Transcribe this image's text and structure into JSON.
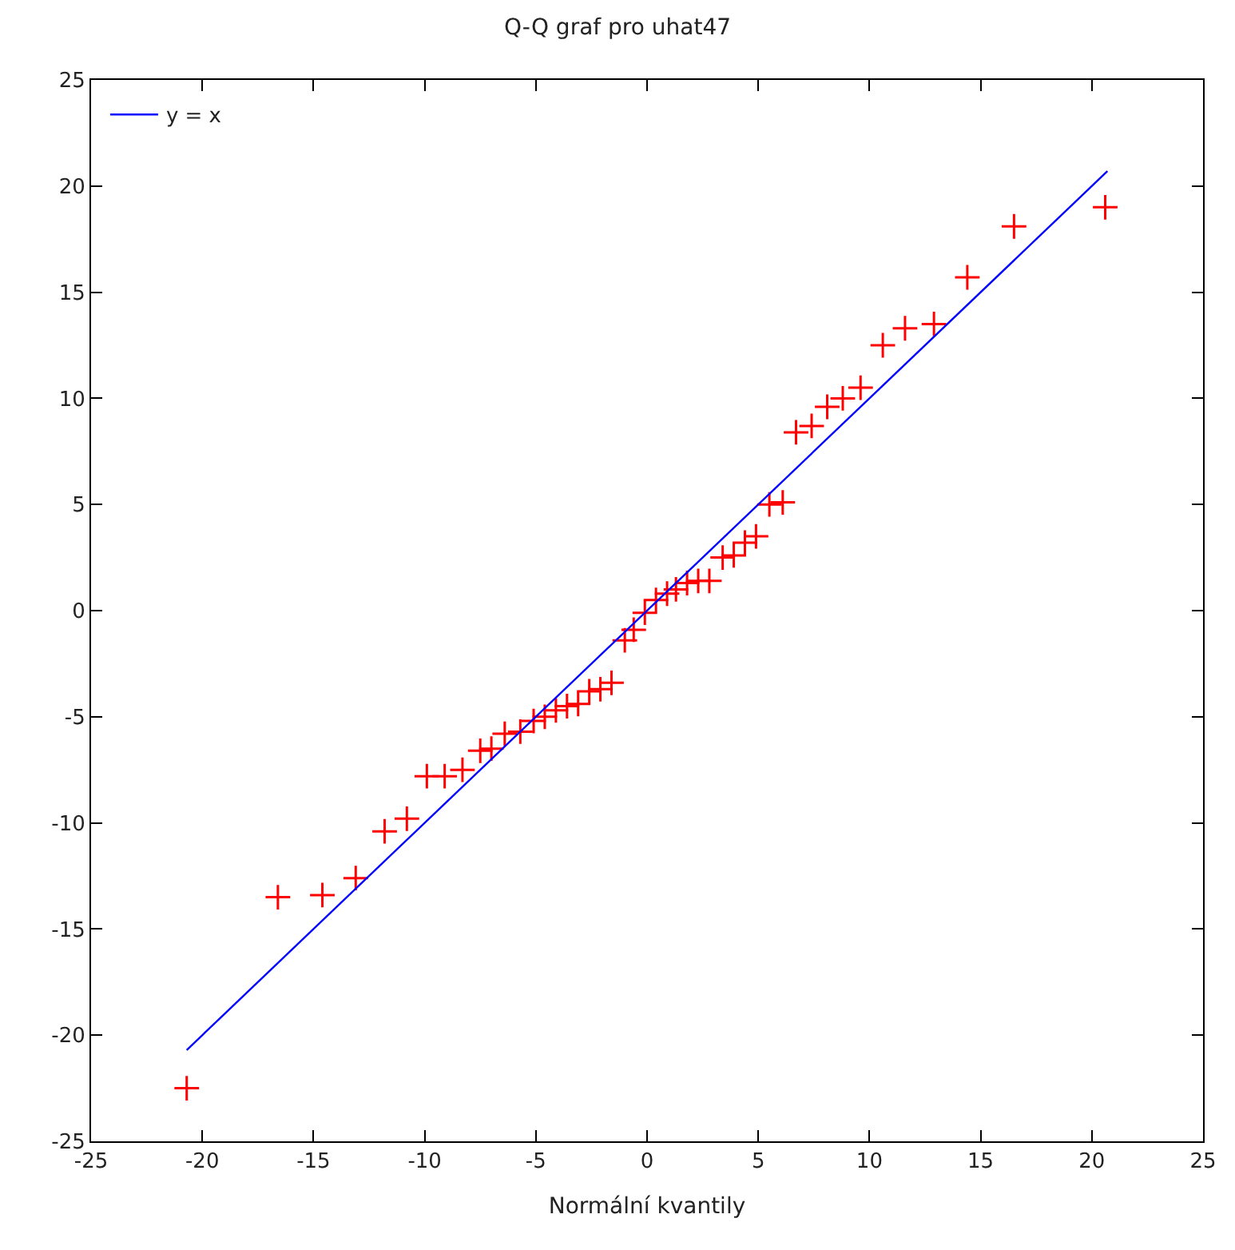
{
  "chart_data": {
    "type": "scatter",
    "title": "Q-Q graf pro uhat47",
    "xlabel": "Normální kvantily",
    "xlim": [
      -25,
      25
    ],
    "ylim": [
      -25,
      25
    ],
    "xticks": [
      -25,
      -20,
      -15,
      -10,
      -5,
      0,
      5,
      10,
      15,
      20,
      25
    ],
    "yticks": [
      -25,
      -20,
      -15,
      -10,
      -5,
      0,
      5,
      10,
      15,
      20,
      25
    ],
    "grid": false,
    "legend": "top left",
    "marker": "cross",
    "series": [
      {
        "color": "#ff0000",
        "x": [
          -20.7,
          -16.6,
          -14.6,
          -13.1,
          -11.8,
          -10.8,
          -9.9,
          -9.1,
          -8.3,
          -7.5,
          -7.0,
          -6.4,
          -5.7,
          -5.1,
          -4.6,
          -4.1,
          -3.6,
          -3.1,
          -2.6,
          -2.1,
          -1.6,
          -1.0,
          -0.6,
          -0.1,
          0.4,
          0.9,
          1.3,
          1.8,
          2.3,
          2.8,
          3.4,
          3.9,
          4.4,
          4.9,
          5.5,
          6.1,
          6.7,
          7.4,
          8.1,
          8.8,
          9.6,
          10.6,
          11.6,
          12.9,
          14.4,
          16.5,
          20.6
        ],
        "values": [
          -22.5,
          -13.5,
          -13.4,
          -12.6,
          -10.4,
          -9.8,
          -7.8,
          -7.8,
          -7.5,
          -6.6,
          -6.5,
          -5.8,
          -5.7,
          -5.2,
          -5.0,
          -4.7,
          -4.5,
          -4.4,
          -3.8,
          -3.7,
          -3.4,
          -1.4,
          -0.9,
          -0.1,
          0.5,
          0.8,
          1.0,
          1.3,
          1.4,
          1.4,
          2.5,
          2.6,
          3.2,
          3.5,
          5.0,
          5.1,
          8.4,
          8.7,
          9.6,
          10.0,
          10.5,
          12.5,
          13.3,
          13.5,
          15.7,
          18.1,
          19.0
        ]
      },
      {
        "type": "line",
        "marker": "none",
        "name": "y = x",
        "color": "#0000ff",
        "x": [
          -20.7,
          20.7
        ],
        "values": [
          -20.7,
          20.7
        ]
      }
    ]
  }
}
